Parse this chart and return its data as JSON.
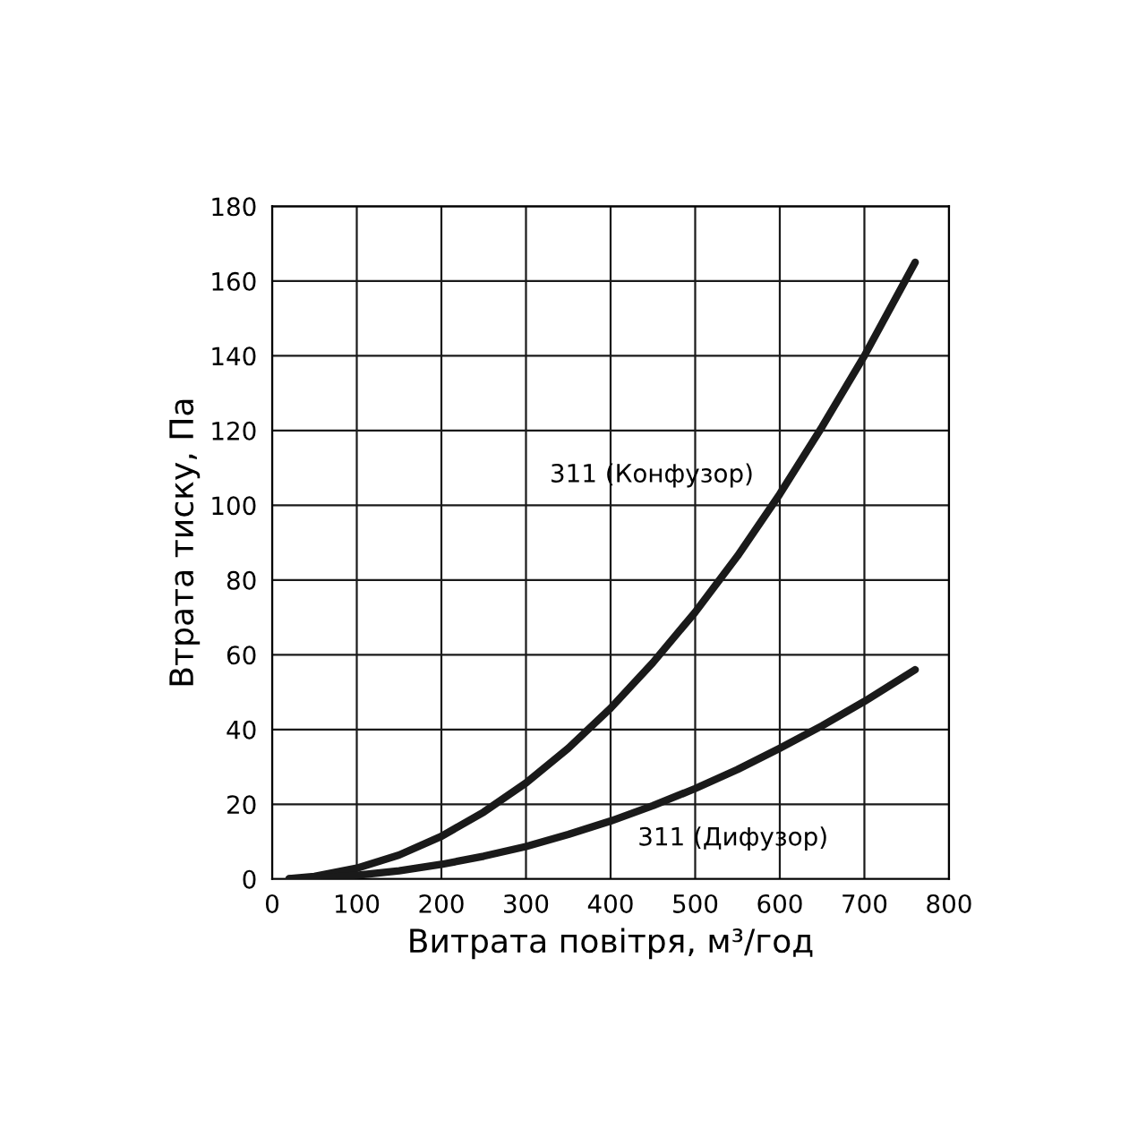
{
  "chart_data": {
    "type": "line",
    "xlabel": "Витрата повітря, м³/год",
    "ylabel": "Втрата тиску, Па",
    "xlim": [
      0,
      800
    ],
    "xticks": [
      0,
      100,
      200,
      300,
      400,
      500,
      600,
      700,
      800
    ],
    "ylim": [
      0,
      180
    ],
    "yticks": [
      0,
      20,
      40,
      60,
      80,
      100,
      120,
      140,
      160,
      180
    ],
    "grid": true,
    "legend": false,
    "marker": "none",
    "line_style": "solid",
    "series": [
      {
        "name": "311 (Конфузор)",
        "color": "#1a1a1a",
        "x": [
          20,
          50,
          100,
          150,
          200,
          250,
          300,
          350,
          400,
          450,
          500,
          550,
          600,
          650,
          700,
          760
        ],
        "values": [
          0.1,
          0.7,
          2.9,
          6.4,
          11.4,
          17.9,
          25.7,
          35,
          45.7,
          57.9,
          71.4,
          86.4,
          103,
          121,
          140,
          165
        ]
      },
      {
        "name": "311 (Дифузор)",
        "color": "#1a1a1a",
        "x": [
          20,
          50,
          100,
          150,
          200,
          250,
          300,
          350,
          400,
          450,
          500,
          550,
          600,
          650,
          700,
          760
        ],
        "values": [
          0,
          0.2,
          1,
          2.2,
          3.9,
          6.1,
          8.7,
          11.9,
          15.5,
          19.6,
          24.2,
          29.3,
          35,
          41,
          47.5,
          56
        ]
      }
    ]
  }
}
